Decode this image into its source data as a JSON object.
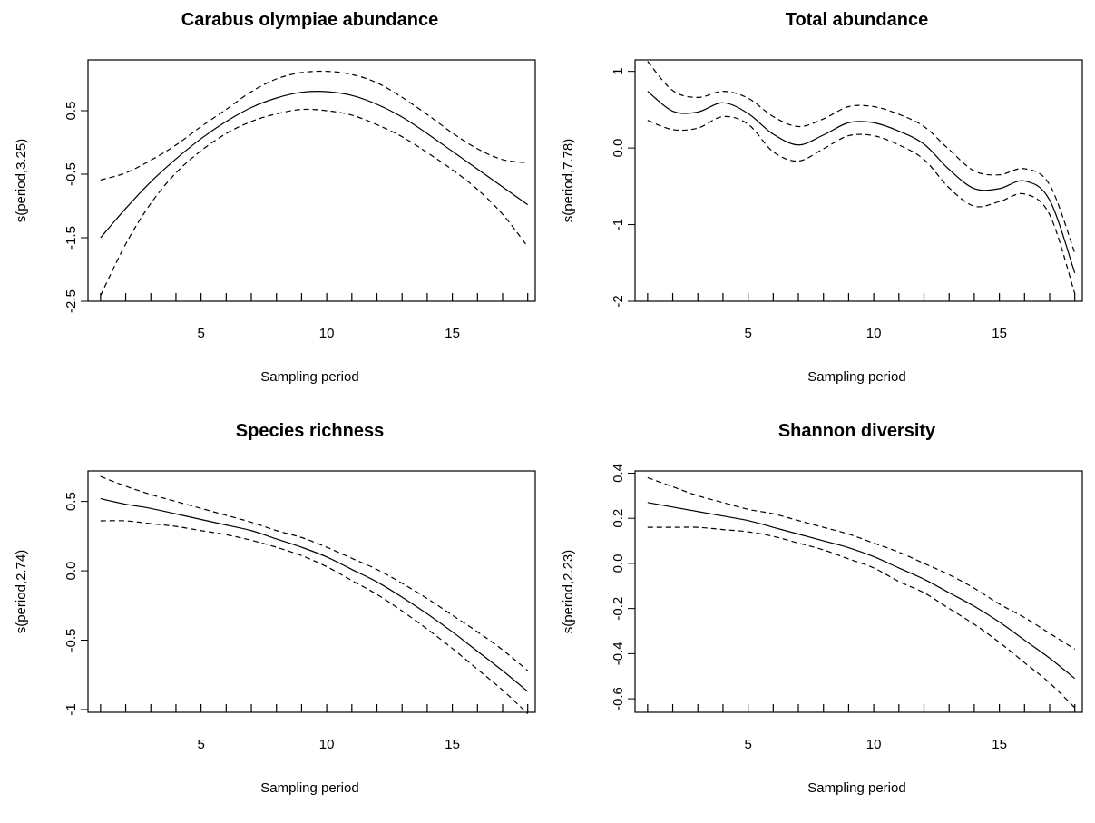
{
  "chart_data": [
    {
      "type": "line",
      "title": "Carabus olympiae abundance",
      "xlabel": "Sampling period",
      "ylabel": "s(period,3.25)",
      "xlim": [
        0.5,
        18.3
      ],
      "ylim": [
        -2.5,
        1.3
      ],
      "xticks": [
        5,
        10,
        15
      ],
      "yticks": [
        -2.5,
        -1.5,
        -0.5,
        0.5
      ],
      "rug": [
        1,
        2,
        3,
        4,
        5,
        6,
        7,
        8,
        9,
        10,
        11,
        12,
        13,
        14,
        15,
        16,
        17,
        18
      ],
      "x": [
        1,
        2,
        3,
        4,
        5,
        6,
        7,
        8,
        9,
        10,
        11,
        12,
        13,
        14,
        15,
        16,
        17,
        18
      ],
      "series": [
        {
          "style": "solid",
          "values": [
            -1.5,
            -1.04,
            -0.62,
            -0.26,
            0.06,
            0.33,
            0.55,
            0.7,
            0.79,
            0.8,
            0.74,
            0.6,
            0.4,
            0.14,
            -0.14,
            -0.42,
            -0.7,
            -0.98
          ]
        },
        {
          "style": "dashed",
          "values": [
            -0.59,
            -0.48,
            -0.28,
            -0.04,
            0.25,
            0.52,
            0.8,
            1.0,
            1.1,
            1.12,
            1.07,
            0.94,
            0.71,
            0.44,
            0.15,
            -0.1,
            -0.27,
            -0.32
          ]
        },
        {
          "style": "dashed",
          "values": [
            -2.41,
            -1.6,
            -0.96,
            -0.48,
            -0.13,
            0.14,
            0.33,
            0.45,
            0.52,
            0.5,
            0.43,
            0.28,
            0.09,
            -0.16,
            -0.43,
            -0.74,
            -1.13,
            -1.64
          ]
        }
      ]
    },
    {
      "type": "line",
      "title": "Total abundance",
      "xlabel": "Sampling period",
      "ylabel": "s(period,7.78)",
      "xlim": [
        0.5,
        18.3
      ],
      "ylim": [
        -2.0,
        1.15
      ],
      "xticks": [
        5,
        10,
        15
      ],
      "yticks": [
        -2.0,
        -1.0,
        0.0,
        1.0
      ],
      "rug": [
        1,
        2,
        3,
        4,
        5,
        6,
        7,
        8,
        9,
        10,
        11,
        12,
        13,
        14,
        15,
        16,
        17,
        18
      ],
      "x": [
        1,
        2,
        3,
        4,
        5,
        6,
        7,
        8,
        9,
        10,
        11,
        12,
        13,
        14,
        15,
        16,
        17,
        18
      ],
      "series": [
        {
          "style": "solid",
          "values": [
            0.74,
            0.48,
            0.47,
            0.59,
            0.45,
            0.18,
            0.04,
            0.17,
            0.33,
            0.33,
            0.22,
            0.05,
            -0.28,
            -0.53,
            -0.53,
            -0.43,
            -0.68,
            -1.63
          ]
        },
        {
          "style": "dashed",
          "values": [
            1.13,
            0.75,
            0.66,
            0.74,
            0.65,
            0.41,
            0.28,
            0.38,
            0.54,
            0.54,
            0.44,
            0.28,
            -0.02,
            -0.3,
            -0.35,
            -0.27,
            -0.48,
            -1.37
          ]
        },
        {
          "style": "dashed",
          "values": [
            0.36,
            0.24,
            0.26,
            0.41,
            0.31,
            -0.05,
            -0.17,
            -0.01,
            0.16,
            0.16,
            0.04,
            -0.15,
            -0.52,
            -0.76,
            -0.7,
            -0.6,
            -0.87,
            -1.9
          ]
        }
      ]
    },
    {
      "type": "line",
      "title": "Species richness",
      "xlabel": "Sampling period",
      "ylabel": "s(period,2.74)",
      "xlim": [
        0.5,
        18.3
      ],
      "ylim": [
        -1.02,
        0.72
      ],
      "xticks": [
        5,
        10,
        15
      ],
      "yticks": [
        -1.0,
        -0.5,
        0.0,
        0.5
      ],
      "rug": [
        1,
        2,
        3,
        4,
        5,
        6,
        7,
        8,
        9,
        10,
        11,
        12,
        13,
        14,
        15,
        16,
        17,
        18
      ],
      "x": [
        1,
        2,
        3,
        4,
        5,
        6,
        7,
        8,
        9,
        10,
        11,
        12,
        13,
        14,
        15,
        16,
        17,
        18
      ],
      "series": [
        {
          "style": "solid",
          "values": [
            0.52,
            0.48,
            0.45,
            0.41,
            0.37,
            0.33,
            0.29,
            0.23,
            0.17,
            0.1,
            0.01,
            -0.08,
            -0.19,
            -0.31,
            -0.44,
            -0.58,
            -0.72,
            -0.87
          ]
        },
        {
          "style": "dashed",
          "values": [
            0.68,
            0.61,
            0.55,
            0.5,
            0.45,
            0.4,
            0.35,
            0.29,
            0.24,
            0.17,
            0.09,
            0.01,
            -0.09,
            -0.2,
            -0.32,
            -0.44,
            -0.57,
            -0.72
          ]
        },
        {
          "style": "dashed",
          "values": [
            0.36,
            0.36,
            0.34,
            0.32,
            0.29,
            0.26,
            0.22,
            0.17,
            0.11,
            0.03,
            -0.07,
            -0.17,
            -0.29,
            -0.42,
            -0.56,
            -0.71,
            -0.86,
            -1.03
          ]
        }
      ]
    },
    {
      "type": "line",
      "title": "Shannon diversity",
      "xlabel": "Sampling period",
      "ylabel": "s(period,2.23)",
      "xlim": [
        0.5,
        18.3
      ],
      "ylim": [
        -0.66,
        0.41
      ],
      "xticks": [
        5,
        10,
        15
      ],
      "yticks": [
        -0.6,
        -0.4,
        -0.2,
        0.0,
        0.2,
        0.4
      ],
      "rug": [
        1,
        2,
        3,
        4,
        5,
        6,
        7,
        8,
        9,
        10,
        11,
        12,
        13,
        14,
        15,
        16,
        17,
        18
      ],
      "x": [
        1,
        2,
        3,
        4,
        5,
        6,
        7,
        8,
        9,
        10,
        11,
        12,
        13,
        14,
        15,
        16,
        17,
        18
      ],
      "series": [
        {
          "style": "solid",
          "values": [
            0.27,
            0.25,
            0.23,
            0.21,
            0.19,
            0.16,
            0.13,
            0.1,
            0.07,
            0.03,
            -0.02,
            -0.07,
            -0.13,
            -0.19,
            -0.26,
            -0.34,
            -0.42,
            -0.51
          ]
        },
        {
          "style": "dashed",
          "values": [
            0.38,
            0.34,
            0.3,
            0.27,
            0.24,
            0.22,
            0.19,
            0.16,
            0.13,
            0.09,
            0.05,
            0.0,
            -0.05,
            -0.11,
            -0.18,
            -0.24,
            -0.31,
            -0.38
          ]
        },
        {
          "style": "dashed",
          "values": [
            0.16,
            0.16,
            0.16,
            0.15,
            0.14,
            0.12,
            0.09,
            0.06,
            0.02,
            -0.02,
            -0.08,
            -0.13,
            -0.2,
            -0.27,
            -0.35,
            -0.44,
            -0.53,
            -0.64
          ]
        }
      ]
    }
  ]
}
